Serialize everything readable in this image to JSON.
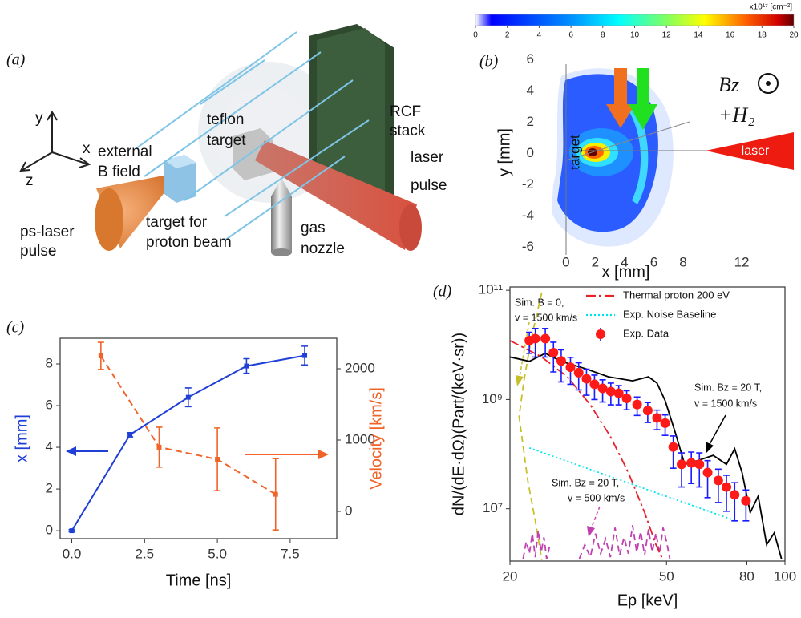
{
  "panel_a": {
    "panel_label": "(a)",
    "axes": [
      "y",
      "x",
      "z"
    ],
    "labels": [
      "teflon",
      "target",
      "RCF",
      "stack",
      "external",
      "B field",
      "laser",
      "pulse",
      "ps-laser",
      "pulse",
      "target for",
      "proton beam",
      "gas",
      "nozzle"
    ]
  },
  "chart_data": [
    {
      "type": "map",
      "panel_label": "(b)",
      "xlabel": "x [mm]",
      "ylabel": "y [mm]",
      "xlim": [
        -1.85,
        15.5
      ],
      "ylim": [
        -6.6,
        6.5
      ],
      "xticks": [
        0,
        2,
        4,
        6,
        8,
        12
      ],
      "yticks": [
        -6,
        -4,
        -2,
        0,
        2,
        4,
        6
      ],
      "annotations": [
        "target",
        "laser",
        "Bz",
        "+H₂"
      ],
      "colorbar": {
        "unit": "x10¹⁷ [cm⁻²]",
        "lim": [
          0,
          20
        ],
        "ticks": [
          0,
          2,
          4,
          6,
          8,
          10,
          12,
          14,
          16,
          18,
          20
        ]
      }
    },
    {
      "type": "line",
      "panel_label": "(c)",
      "xlabel": "Time [ns]",
      "ylabel": "x [mm]",
      "y2label": "Velocity [km/s]",
      "xlim": [
        -0.4,
        9.1
      ],
      "xticks": [
        {
          "value": 0,
          "label": "0.0"
        },
        {
          "value": 2.5,
          "label": "2.5"
        },
        {
          "value": 5,
          "label": "5.0"
        },
        {
          "value": 7.5,
          "label": "7.5"
        }
      ],
      "ylim": [
        -0.38,
        9.23
      ],
      "yticks": [
        0,
        2,
        4,
        6,
        8
      ],
      "y2lim": [
        -382,
        2427
      ],
      "y2ticks": [
        0,
        1000,
        2000
      ],
      "series": [
        {
          "color": "#1f3fd6",
          "style": "solid",
          "x": [
            0,
            2,
            4,
            6,
            8
          ],
          "values": [
            0,
            4.6,
            6.4,
            7.9,
            8.4
          ],
          "errors": [
            0.05,
            0.1,
            0.45,
            0.35,
            0.45
          ]
        },
        {
          "axis": "y2",
          "color": "#f0642a",
          "style": "dashed",
          "x": [
            1,
            3,
            5,
            7
          ],
          "values": [
            2180,
            900,
            730,
            240
          ],
          "errors": [
            190,
            280,
            440,
            500
          ]
        }
      ]
    },
    {
      "type": "line",
      "panel_label": "(d)",
      "xlabel": "Ep [keV]",
      "ylabel": "dN/(dE·dΩ)(Part/(keV·sr))",
      "xscale": "log",
      "yscale": "log",
      "xlim": [
        20,
        100
      ],
      "xticks": [
        20,
        50,
        80,
        100
      ],
      "ylim": [
        1100000,
        115000000000
      ],
      "yticks": [
        {
          "value": 10000000,
          "label": "10⁷"
        },
        {
          "value": 1000000000,
          "label": "10⁹"
        },
        {
          "value": 100000000000,
          "label": "10¹¹"
        }
      ],
      "legend": "upper right",
      "annotations": [
        "Sim. B = 0,",
        "v = 1500 km/s",
        "Sim. Bz = 20 T,",
        "v = 1500 km/s",
        "Sim. Bz = 20 T,",
        "v = 500 km/s"
      ],
      "series": [
        {
          "color": "#c8c02a",
          "style": "dashed",
          "x": [
            24.1,
            22.7,
            21.7,
            21.1,
            22.2,
            23.2,
            24.1
          ],
          "values": [
            91000000000,
            14000000000,
            2200000000,
            490000000,
            33000000,
            6000000,
            1150000
          ]
        },
        {
          "color": "#c040b0",
          "style": "dashed",
          "x": [
            21.6,
            22.0,
            22.4,
            22.8,
            23.2,
            23.6,
            24.0,
            24.4,
            24.8,
            25.2,
            27,
            30,
            31,
            32,
            33,
            34,
            35,
            36,
            37,
            38,
            39,
            40,
            41,
            42,
            43,
            44,
            45,
            46,
            47,
            48,
            49,
            50,
            51
          ],
          "values": [
            1200000,
            2500000,
            1500000,
            3500000,
            1300000,
            4000000,
            1600000,
            3000000,
            1200000,
            2000000,
            null,
            1200000,
            2200000,
            1300000,
            3500000,
            1500000,
            2800000,
            1300000,
            4500000,
            1400000,
            3000000,
            1500000,
            5000000,
            1600000,
            3800000,
            1400000,
            4200000,
            1600000,
            3600000,
            1500000,
            4500000,
            2500000,
            1200000
          ]
        },
        {
          "color": "#000000",
          "style": "solid",
          "x": [
            20,
            22.4,
            24.6,
            27,
            31,
            35.6,
            41,
            45,
            47.3,
            49.6,
            52.6,
            55.6,
            59.6,
            65.7,
            71,
            74.5,
            77.8,
            81.6,
            85.5,
            89.8,
            93.9,
            98
          ],
          "values": [
            6000000000,
            5000000000,
            7000000000,
            5000000000,
            3700000000,
            2600000000,
            2200000000,
            2600000000,
            2000000000,
            950000000,
            250000000,
            65000000,
            75000000,
            95000000,
            65000000,
            125000000,
            46000000,
            8500000,
            17000000,
            2200000,
            3600000,
            1200000
          ]
        },
        {
          "name": "Thermal proton 200 eV",
          "color": "#e8202a",
          "style": "dashdot",
          "x": [
            20,
            24,
            28,
            32,
            36,
            40,
            44,
            47,
            49
          ],
          "values": [
            12000000000,
            6100000000,
            2600000000,
            800000000,
            210000000,
            46000000,
            8500000,
            2200000,
            1150000
          ]
        },
        {
          "name": "Exp. Noise Baseline",
          "color": "#00e5ee",
          "style": "dotted",
          "x": [
            22.4,
            75
          ],
          "values": [
            130000000,
            6000000
          ]
        },
        {
          "name": "Exp. Data",
          "color": "#ff1a1a",
          "error_color": "#1a1aff",
          "style": "markers",
          "x": [
            22.4,
            23.2,
            24.6,
            25.8,
            27.0,
            28.5,
            29.9,
            31.3,
            32.8,
            34.4,
            36.1,
            37.8,
            39.6,
            42.1,
            44.8,
            47.3,
            49.6,
            52.0,
            54.6,
            57.8,
            60.6,
            63.6,
            67.7,
            71.0,
            74.5,
            79.6
          ],
          "values": [
            12000000000,
            13000000000,
            13000000000,
            7200000000,
            5100000000,
            3900000000,
            3100000000,
            2400000000,
            1900000000,
            1600000000,
            1400000000,
            1300000000,
            1050000000,
            810000000,
            630000000,
            460000000,
            370000000,
            135000000,
            65000000,
            69000000,
            65000000,
            46000000,
            33000000,
            25000000,
            18000000,
            14000000
          ],
          "errors": [
            5000000000,
            7000000000,
            7000000000,
            4000000000,
            3000000000,
            2000000000,
            1600000000,
            1200000000,
            900000000,
            700000000,
            600000000,
            500000000,
            400000000,
            300000000,
            250000000,
            180000000,
            150000000,
            80000000,
            40000000,
            40000000,
            40000000,
            30000000,
            20000000,
            16000000,
            12000000,
            8000000
          ]
        }
      ]
    }
  ]
}
